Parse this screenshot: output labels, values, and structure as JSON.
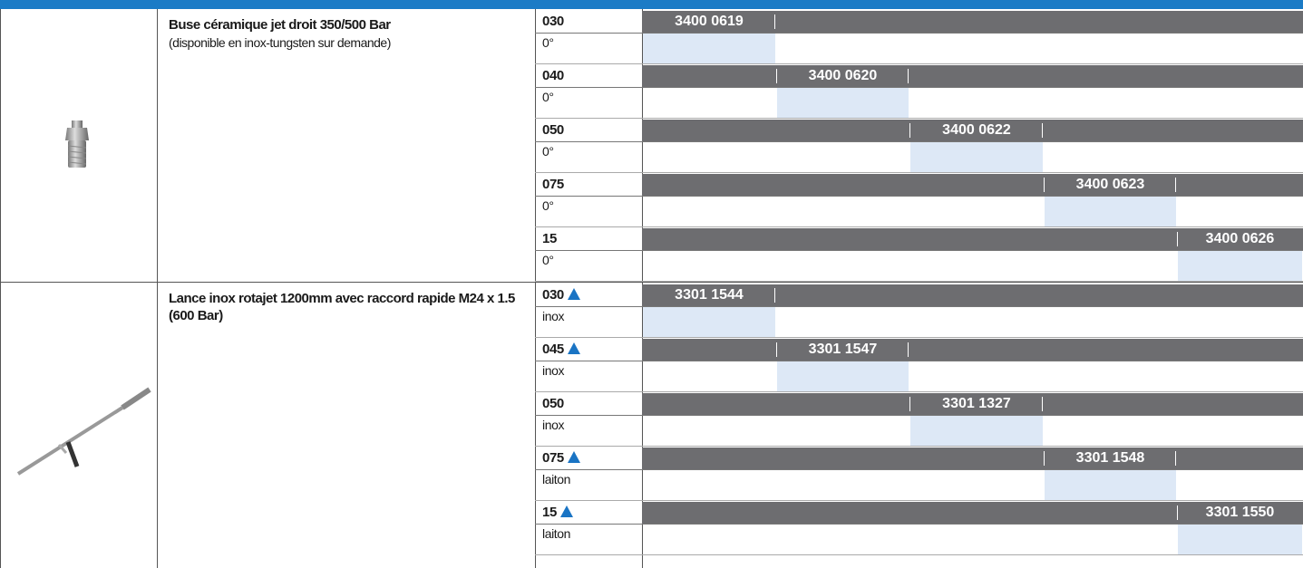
{
  "groups": [
    {
      "title": "Buse céramique jet droit 350/500 Bar",
      "subtitle": "(disponible en inox-tungsten sur demande)",
      "rows": [
        {
          "size": "030",
          "marker": false,
          "note": "0°",
          "code": "3400 0619"
        },
        {
          "size": "040",
          "marker": false,
          "note": "0°",
          "code": "3400 0620"
        },
        {
          "size": "050",
          "marker": false,
          "note": "0°",
          "code": "3400 0622"
        },
        {
          "size": "075",
          "marker": false,
          "note": "0°",
          "code": "3400 0623"
        },
        {
          "size": "15",
          "marker": false,
          "note": "0°",
          "code": "3400 0626"
        }
      ]
    },
    {
      "title": "Lance inox rotajet 1200mm avec raccord rapide M24 x 1.5 (600 Bar)",
      "rows": [
        {
          "size": "030",
          "marker": true,
          "note": "inox",
          "code": "3301 1544"
        },
        {
          "size": "045",
          "marker": true,
          "note": "inox",
          "code": "3301 1547"
        },
        {
          "size": "050",
          "marker": false,
          "note": "inox",
          "code": "3301 1327"
        },
        {
          "size": "075",
          "marker": true,
          "note": "laiton",
          "code": "3301 1548"
        },
        {
          "size": "15",
          "marker": true,
          "note": "laiton",
          "code": "3301 1550"
        }
      ]
    }
  ]
}
